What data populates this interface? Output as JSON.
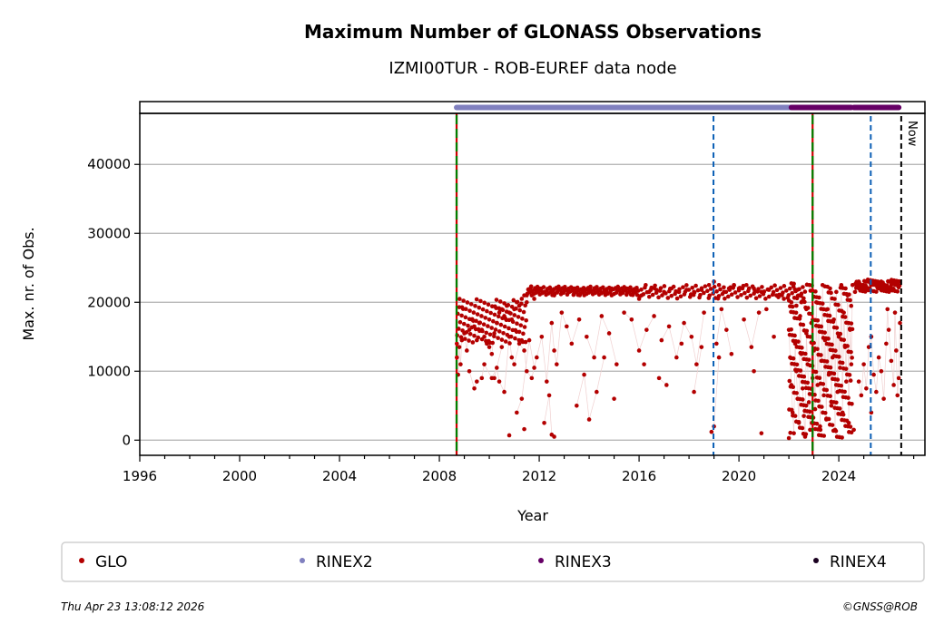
{
  "chart_data": {
    "type": "scatter",
    "title": "Maximum Number of GLONASS Observations",
    "subtitle": "IZMI00TUR - ROB-EUREF data node",
    "xlabel": "Year",
    "ylabel": "Max. nr. of Obs.",
    "xlim": [
      1996,
      2027.45
    ],
    "ylim": [
      -2200,
      47400
    ],
    "grid": "y",
    "xticks": [
      1996,
      2000,
      2004,
      2008,
      2012,
      2016,
      2020,
      2024
    ],
    "xtick_labels": [
      "1996",
      "2000",
      "2004",
      "2008",
      "2012",
      "2016",
      "2020",
      "2024"
    ],
    "yticks": [
      0,
      10000,
      20000,
      30000,
      40000
    ],
    "ytick_labels": [
      "0",
      "10000",
      "20000",
      "30000",
      "40000"
    ],
    "colors": {
      "GLO": "#b30000",
      "RINEX2": "#8080bf",
      "RINEX3": "#660066",
      "RINEX4": "#1a0020",
      "event_green": "#008000",
      "event_red": "#cc0000",
      "event_blue": "#0b5fb5",
      "now": "#000000"
    },
    "events": [
      {
        "year": 2008.69,
        "style": "red-green"
      },
      {
        "year": 2018.98,
        "style": "blue-dashed"
      },
      {
        "year": 2022.95,
        "style": "red-green"
      },
      {
        "year": 2025.28,
        "style": "blue-dashed"
      },
      {
        "year": 2026.5,
        "style": "now"
      }
    ],
    "now_label": "Now",
    "format_strip": [
      {
        "name": "RINEX2",
        "start": 2008.69,
        "end": 2022.1
      },
      {
        "name": "RINEX3",
        "start": 2022.1,
        "end": 2024.5
      },
      {
        "name": "RINEX3",
        "start": 2024.6,
        "end": 2026.4
      }
    ],
    "series": [
      {
        "name": "GLO",
        "points": [
          [
            2008.7,
            12000
          ],
          [
            2008.75,
            9500
          ],
          [
            2008.8,
            13500
          ],
          [
            2008.85,
            11000
          ],
          [
            2008.9,
            14500
          ],
          [
            2009.0,
            15500
          ],
          [
            2009.1,
            13000
          ],
          [
            2009.2,
            16000
          ],
          [
            2009.3,
            17500
          ],
          [
            2009.4,
            16500
          ],
          [
            2009.5,
            14500
          ],
          [
            2009.6,
            17000
          ],
          [
            2009.7,
            16000
          ],
          [
            2009.8,
            15000
          ],
          [
            2009.9,
            14000
          ],
          [
            2010.0,
            13500
          ],
          [
            2010.1,
            12500
          ],
          [
            2010.2,
            15500
          ],
          [
            2010.3,
            17000
          ],
          [
            2010.4,
            18500
          ],
          [
            2010.5,
            19000
          ],
          [
            2010.6,
            18000
          ],
          [
            2010.7,
            19500
          ],
          [
            2010.8,
            18500
          ],
          [
            2010.9,
            17500
          ],
          [
            2011.0,
            19000
          ],
          [
            2011.1,
            20000
          ],
          [
            2011.2,
            19500
          ],
          [
            2011.3,
            20500
          ],
          [
            2011.4,
            21000
          ],
          [
            2011.5,
            20000
          ],
          [
            2011.6,
            21500
          ],
          [
            2011.7,
            21000
          ],
          [
            2011.8,
            20500
          ],
          [
            2011.9,
            21500
          ],
          [
            2012.0,
            22000
          ],
          [
            2012.2,
            21500
          ],
          [
            2012.4,
            22000
          ],
          [
            2012.6,
            21000
          ],
          [
            2012.8,
            22000
          ],
          [
            2013.0,
            22000
          ],
          [
            2013.2,
            21500
          ],
          [
            2013.4,
            22000
          ],
          [
            2013.6,
            21800
          ],
          [
            2013.8,
            22000
          ],
          [
            2014.0,
            21800
          ],
          [
            2014.3,
            22000
          ],
          [
            2014.6,
            21500
          ],
          [
            2014.9,
            22000
          ],
          [
            2015.2,
            21800
          ],
          [
            2015.5,
            22000
          ],
          [
            2015.8,
            21500
          ],
          [
            2016.1,
            21000
          ],
          [
            2016.4,
            21500
          ],
          [
            2016.7,
            21800
          ],
          [
            2017.0,
            21500
          ],
          [
            2017.3,
            22000
          ],
          [
            2017.6,
            21500
          ],
          [
            2017.9,
            21800
          ],
          [
            2018.2,
            21500
          ],
          [
            2018.5,
            21800
          ],
          [
            2018.8,
            22500
          ],
          [
            2019.0,
            23000
          ],
          [
            2019.2,
            22500
          ],
          [
            2019.4,
            21500
          ],
          [
            2019.6,
            22000
          ],
          [
            2019.8,
            22500
          ],
          [
            2020.0,
            22000
          ],
          [
            2020.3,
            22500
          ],
          [
            2020.6,
            22000
          ],
          [
            2020.9,
            21500
          ],
          [
            2021.2,
            21800
          ],
          [
            2021.5,
            21000
          ],
          [
            2021.8,
            20500
          ],
          [
            2022.1,
            20000
          ],
          [
            2022.3,
            19500
          ],
          [
            2022.5,
            20000
          ],
          [
            2022.7,
            19000
          ],
          [
            2009.2,
            10000
          ],
          [
            2009.4,
            7500
          ],
          [
            2009.5,
            8500
          ],
          [
            2009.7,
            9000
          ],
          [
            2009.8,
            11000
          ],
          [
            2010.1,
            9000
          ],
          [
            2010.3,
            10500
          ],
          [
            2010.4,
            8500
          ],
          [
            2010.6,
            7000
          ],
          [
            2010.8,
            15000
          ],
          [
            2010.9,
            12000
          ],
          [
            2011.0,
            11000
          ],
          [
            2011.2,
            14000
          ],
          [
            2011.4,
            13000
          ],
          [
            2011.5,
            10000
          ],
          [
            2011.7,
            9000
          ],
          [
            2011.9,
            12000
          ],
          [
            2012.1,
            15000
          ],
          [
            2012.3,
            8500
          ],
          [
            2012.5,
            17000
          ],
          [
            2012.6,
            13000
          ],
          [
            2012.7,
            11000
          ],
          [
            2012.9,
            18500
          ],
          [
            2013.1,
            16500
          ],
          [
            2013.3,
            14000
          ],
          [
            2013.6,
            17500
          ],
          [
            2013.9,
            15000
          ],
          [
            2014.2,
            12000
          ],
          [
            2014.5,
            18000
          ],
          [
            2014.8,
            15500
          ],
          [
            2015.1,
            11000
          ],
          [
            2015.4,
            18500
          ],
          [
            2015.7,
            17500
          ],
          [
            2016.0,
            13000
          ],
          [
            2016.3,
            16000
          ],
          [
            2016.6,
            18000
          ],
          [
            2016.9,
            14500
          ],
          [
            2017.2,
            16500
          ],
          [
            2017.5,
            12000
          ],
          [
            2017.8,
            17000
          ],
          [
            2018.1,
            15000
          ],
          [
            2018.3,
            11000
          ],
          [
            2018.6,
            18500
          ],
          [
            2019.1,
            14000
          ],
          [
            2019.3,
            19000
          ],
          [
            2019.5,
            16000
          ],
          [
            2019.7,
            12500
          ],
          [
            2020.2,
            17500
          ],
          [
            2020.5,
            13500
          ],
          [
            2020.8,
            18500
          ],
          [
            2021.1,
            19000
          ],
          [
            2021.4,
            15000
          ],
          [
            2010.2,
            9000
          ],
          [
            2010.5,
            13500
          ],
          [
            2011.1,
            4000
          ],
          [
            2011.3,
            6000
          ],
          [
            2011.6,
            14500
          ],
          [
            2011.8,
            10500
          ],
          [
            2012.2,
            2500
          ],
          [
            2012.4,
            6500
          ],
          [
            2012.5,
            800
          ],
          [
            2012.6,
            500
          ],
          [
            2013.5,
            5000
          ],
          [
            2013.8,
            9500
          ],
          [
            2014.0,
            3000
          ],
          [
            2014.3,
            7000
          ],
          [
            2014.6,
            12000
          ],
          [
            2015.0,
            6000
          ],
          [
            2016.2,
            11000
          ],
          [
            2016.8,
            9000
          ],
          [
            2017.1,
            8000
          ],
          [
            2017.7,
            14000
          ],
          [
            2018.2,
            7000
          ],
          [
            2018.5,
            13500
          ],
          [
            2018.9,
            1200
          ],
          [
            2019.0,
            2000
          ],
          [
            2019.2,
            12000
          ],
          [
            2020.6,
            10000
          ],
          [
            2020.9,
            1000
          ],
          [
            2010.8,
            700
          ],
          [
            2011.4,
            1600
          ],
          [
            2022.0,
            16000
          ],
          [
            2022.05,
            12000
          ],
          [
            2022.1,
            8000
          ],
          [
            2022.15,
            4000
          ],
          [
            2022.2,
            1000
          ],
          [
            2022.25,
            14000
          ],
          [
            2022.3,
            10000
          ],
          [
            2022.35,
            6000
          ],
          [
            2022.4,
            2500
          ],
          [
            2022.45,
            18000
          ],
          [
            2022.5,
            12500
          ],
          [
            2022.55,
            7500
          ],
          [
            2022.6,
            3500
          ],
          [
            2022.65,
            500
          ],
          [
            2022.7,
            15500
          ],
          [
            2022.75,
            11000
          ],
          [
            2022.8,
            5500
          ],
          [
            2022.85,
            1500
          ],
          [
            2022.9,
            17000
          ],
          [
            2022.95,
            9000
          ],
          [
            2023.0,
            13000
          ],
          [
            2023.05,
            4500
          ],
          [
            2023.1,
            20000
          ],
          [
            2023.15,
            8000
          ],
          [
            2023.2,
            16500
          ],
          [
            2023.25,
            2000
          ],
          [
            2023.3,
            11500
          ],
          [
            2023.35,
            22500
          ],
          [
            2023.4,
            6500
          ],
          [
            2023.45,
            14500
          ],
          [
            2023.5,
            3000
          ],
          [
            2023.55,
            19000
          ],
          [
            2023.6,
            9500
          ],
          [
            2023.65,
            22000
          ],
          [
            2023.7,
            5000
          ],
          [
            2023.75,
            12000
          ],
          [
            2023.8,
            17500
          ],
          [
            2023.85,
            1500
          ],
          [
            2023.9,
            21500
          ],
          [
            2023.95,
            7000
          ],
          [
            2024.0,
            15000
          ],
          [
            2024.05,
            10500
          ],
          [
            2024.1,
            22500
          ],
          [
            2024.15,
            4000
          ],
          [
            2024.2,
            18500
          ],
          [
            2024.25,
            13500
          ],
          [
            2024.3,
            8500
          ],
          [
            2024.35,
            21000
          ],
          [
            2024.4,
            2500
          ],
          [
            2024.45,
            16000
          ],
          [
            2024.5,
            11000
          ],
          [
            2024.55,
            22500
          ],
          [
            2024.7,
            22500
          ],
          [
            2024.8,
            23000
          ],
          [
            2024.9,
            22000
          ],
          [
            2025.0,
            22500
          ],
          [
            2025.1,
            23000
          ],
          [
            2025.2,
            22000
          ],
          [
            2025.3,
            22500
          ],
          [
            2025.4,
            23000
          ],
          [
            2025.5,
            22500
          ],
          [
            2025.6,
            22000
          ],
          [
            2025.7,
            23000
          ],
          [
            2025.8,
            22500
          ],
          [
            2025.9,
            22000
          ],
          [
            2026.0,
            23000
          ],
          [
            2026.1,
            22500
          ],
          [
            2026.2,
            23000
          ],
          [
            2026.3,
            22500
          ],
          [
            2026.4,
            23000
          ],
          [
            2024.8,
            8500
          ],
          [
            2024.9,
            6500
          ],
          [
            2025.0,
            11000
          ],
          [
            2025.1,
            7500
          ],
          [
            2025.2,
            13500
          ],
          [
            2025.3,
            15000
          ],
          [
            2025.4,
            9500
          ],
          [
            2025.5,
            7000
          ],
          [
            2025.6,
            12000
          ],
          [
            2025.7,
            10000
          ],
          [
            2025.8,
            6000
          ],
          [
            2025.9,
            14000
          ],
          [
            2025.95,
            19000
          ],
          [
            2026.0,
            16000
          ],
          [
            2026.1,
            11500
          ],
          [
            2026.2,
            8000
          ],
          [
            2026.25,
            18500
          ],
          [
            2026.3,
            13000
          ],
          [
            2026.35,
            6500
          ],
          [
            2026.4,
            9000
          ],
          [
            2026.45,
            17000
          ],
          [
            2024.6,
            1500
          ],
          [
            2025.3,
            4000
          ]
        ]
      }
    ],
    "legend": [
      "GLO",
      "RINEX2",
      "RINEX3",
      "RINEX4"
    ],
    "legend_position": "bottom"
  },
  "footer": {
    "timestamp": "Thu Apr 23 13:08:12 2026",
    "credit": "©GNSS@ROB"
  }
}
